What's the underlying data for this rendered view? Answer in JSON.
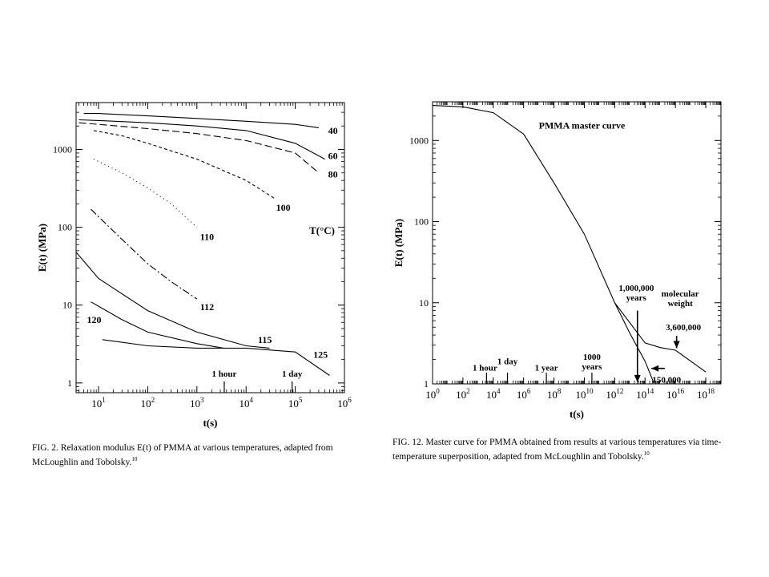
{
  "chart_data": [
    {
      "type": "line",
      "scale": "log-log",
      "xlabel": "t(s)",
      "ylabel": "E(t) (MPa)",
      "xlim": [
        3.5,
        1000000
      ],
      "ylim": [
        0.75,
        4000
      ],
      "x_ticks": [
        {
          "v": 10,
          "base": "10",
          "exp": "1"
        },
        {
          "v": 100,
          "base": "10",
          "exp": "2"
        },
        {
          "v": 1000,
          "base": "10",
          "exp": "3"
        },
        {
          "v": 10000,
          "base": "10",
          "exp": "4"
        },
        {
          "v": 100000,
          "base": "10",
          "exp": "5"
        },
        {
          "v": 1000000,
          "base": "10",
          "exp": "6"
        }
      ],
      "y_ticks": [
        {
          "v": 1,
          "label": "1"
        },
        {
          "v": 10,
          "label": "10"
        },
        {
          "v": 100,
          "label": "100"
        },
        {
          "v": 1000,
          "label": "1000"
        }
      ],
      "legend_title": "T(°C)",
      "series": [
        {
          "name": "40",
          "dash": "solid",
          "x": [
            5,
            10,
            100,
            1000,
            10000,
            100000,
            300000
          ],
          "y": [
            2900,
            2900,
            2700,
            2500,
            2300,
            2100,
            1900
          ]
        },
        {
          "name": "60",
          "dash": "solid",
          "x": [
            4,
            10,
            100,
            1000,
            10000,
            100000,
            400000
          ],
          "y": [
            2400,
            2350,
            2200,
            2000,
            1750,
            1200,
            750
          ]
        },
        {
          "name": "80",
          "dash": "longdash",
          "x": [
            4,
            10,
            100,
            1000,
            10000,
            100000,
            300000
          ],
          "y": [
            2200,
            2100,
            1850,
            1600,
            1300,
            900,
            500
          ]
        },
        {
          "name": "100",
          "dash": "dashed",
          "x": [
            8,
            30,
            100,
            1000,
            10000,
            40000
          ],
          "y": [
            1750,
            1500,
            1200,
            750,
            400,
            230
          ]
        },
        {
          "name": "110",
          "dash": "dotted",
          "x": [
            8,
            30,
            100,
            300,
            1000
          ],
          "y": [
            750,
            500,
            320,
            200,
            100
          ]
        },
        {
          "name": "112",
          "dash": "dashdot",
          "x": [
            7,
            30,
            100,
            300,
            1000
          ],
          "y": [
            170,
            70,
            34,
            20,
            12
          ]
        },
        {
          "name": "115",
          "dash": "solid",
          "x": [
            3.5,
            10,
            100,
            1000,
            10000,
            30000
          ],
          "y": [
            48,
            22,
            8.5,
            4.5,
            3,
            2.8
          ]
        },
        {
          "name": "120",
          "dash": "solid",
          "x": [
            7,
            30,
            100,
            1000,
            3500
          ],
          "y": [
            11,
            6.5,
            4.5,
            3.2,
            2.8
          ]
        },
        {
          "name": "125",
          "dash": "solid",
          "x": [
            12,
            100,
            1000,
            10000,
            100000,
            500000
          ],
          "y": [
            3.6,
            3,
            2.8,
            2.8,
            2.5,
            1.25
          ]
        }
      ],
      "curve_labels": [
        {
          "text": "40",
          "x": 400000,
          "y": 1750
        },
        {
          "text": "60",
          "x": 400000,
          "y": 830
        },
        {
          "text": "80",
          "x": 400000,
          "y": 480
        },
        {
          "text": "100",
          "x": 35000,
          "y": 180
        },
        {
          "text": "110",
          "x": 1000,
          "y": 75
        },
        {
          "text": "112",
          "x": 1000,
          "y": 9.5
        },
        {
          "text": "120",
          "x": 5,
          "y": 6.5
        },
        {
          "text": "115",
          "x": 15000,
          "y": 3.6
        },
        {
          "text": "125",
          "x": 200000,
          "y": 2.3
        }
      ],
      "annotations": [
        {
          "text": "1 hour",
          "x": 3600
        },
        {
          "text": "1 day",
          "x": 86400
        }
      ]
    },
    {
      "type": "line",
      "scale": "log-log",
      "title": "PMMA master curve",
      "xlabel": "t(s)",
      "ylabel": "E(t) (MPa)",
      "xlim": [
        1,
        10000000000000000000
      ],
      "ylim": [
        1,
        3000
      ],
      "x_ticks": [
        {
          "v": 1,
          "base": "10",
          "exp": "0"
        },
        {
          "v": 100,
          "base": "10",
          "exp": "2"
        },
        {
          "v": 10000,
          "base": "10",
          "exp": "4"
        },
        {
          "v": 1000000,
          "base": "10",
          "exp": "6"
        },
        {
          "v": 100000000,
          "base": "10",
          "exp": "8"
        },
        {
          "v": 10000000000,
          "base": "10",
          "exp": "10"
        },
        {
          "v": 1000000000000,
          "base": "10",
          "exp": "12"
        },
        {
          "v": 100000000000000,
          "base": "10",
          "exp": "14"
        },
        {
          "v": 10000000000000000,
          "base": "10",
          "exp": "16"
        },
        {
          "v": 1000000000000000000,
          "base": "10",
          "exp": "18"
        }
      ],
      "y_ticks": [
        {
          "v": 1,
          "label": "1"
        },
        {
          "v": 10,
          "label": "10"
        },
        {
          "v": 100,
          "label": "100"
        },
        {
          "v": 1000,
          "label": "1000"
        }
      ],
      "series": [
        {
          "name": "3,600,000",
          "x": [
            1,
            100,
            10000,
            1000000,
            100000000,
            10000000000,
            1000000000000,
            100000000000000,
            1000000000000000,
            10000000000000000,
            1000000000000000000
          ],
          "y": [
            2700,
            2600,
            2200,
            1200,
            300,
            70,
            10,
            3.2,
            2.8,
            2.6,
            1.4
          ]
        },
        {
          "name": "150,000",
          "x": [
            1000000000000,
            10000000000000,
            100000000000000,
            400000000000000
          ],
          "y": [
            10,
            4.2,
            1.9,
            1
          ]
        }
      ],
      "annotations": [
        {
          "text": "1 hour",
          "x": 3600,
          "y": 1.45,
          "tick": true
        },
        {
          "text": "1 day",
          "x": 86400,
          "y": 1.75,
          "tick": true
        },
        {
          "text": "1 year",
          "x": 31536000,
          "y": 1.45,
          "tick": true
        },
        {
          "text": "1000",
          "x": 31536000000,
          "y": 1.8,
          "tick": true,
          "line2": "years"
        },
        {
          "text": "1,000,000",
          "x": 10000000000000,
          "y": 14,
          "line2": "years"
        },
        {
          "text": "molecular",
          "x": 10000000000000000,
          "y": 12,
          "line2": "weight"
        },
        {
          "text": "3,600,000",
          "x": 10000000000000000,
          "y": 4.6
        },
        {
          "text": "150,000",
          "x": 300000000000000,
          "y": 1.3
        }
      ]
    }
  ],
  "captions": [
    {
      "fig_label": "FIG. 2.",
      "text": "Relaxation modulus E(t) of PMMA at various temperatures, adapted from McLoughlin and Tobolsky.",
      "ref": "10"
    },
    {
      "fig_label": "FIG. 12.",
      "text": "Master curve for PMMA obtained from results at various temperatures via time-temperature superposition, adapted from McLoughlin and Tobolsky.",
      "ref": "10"
    }
  ]
}
